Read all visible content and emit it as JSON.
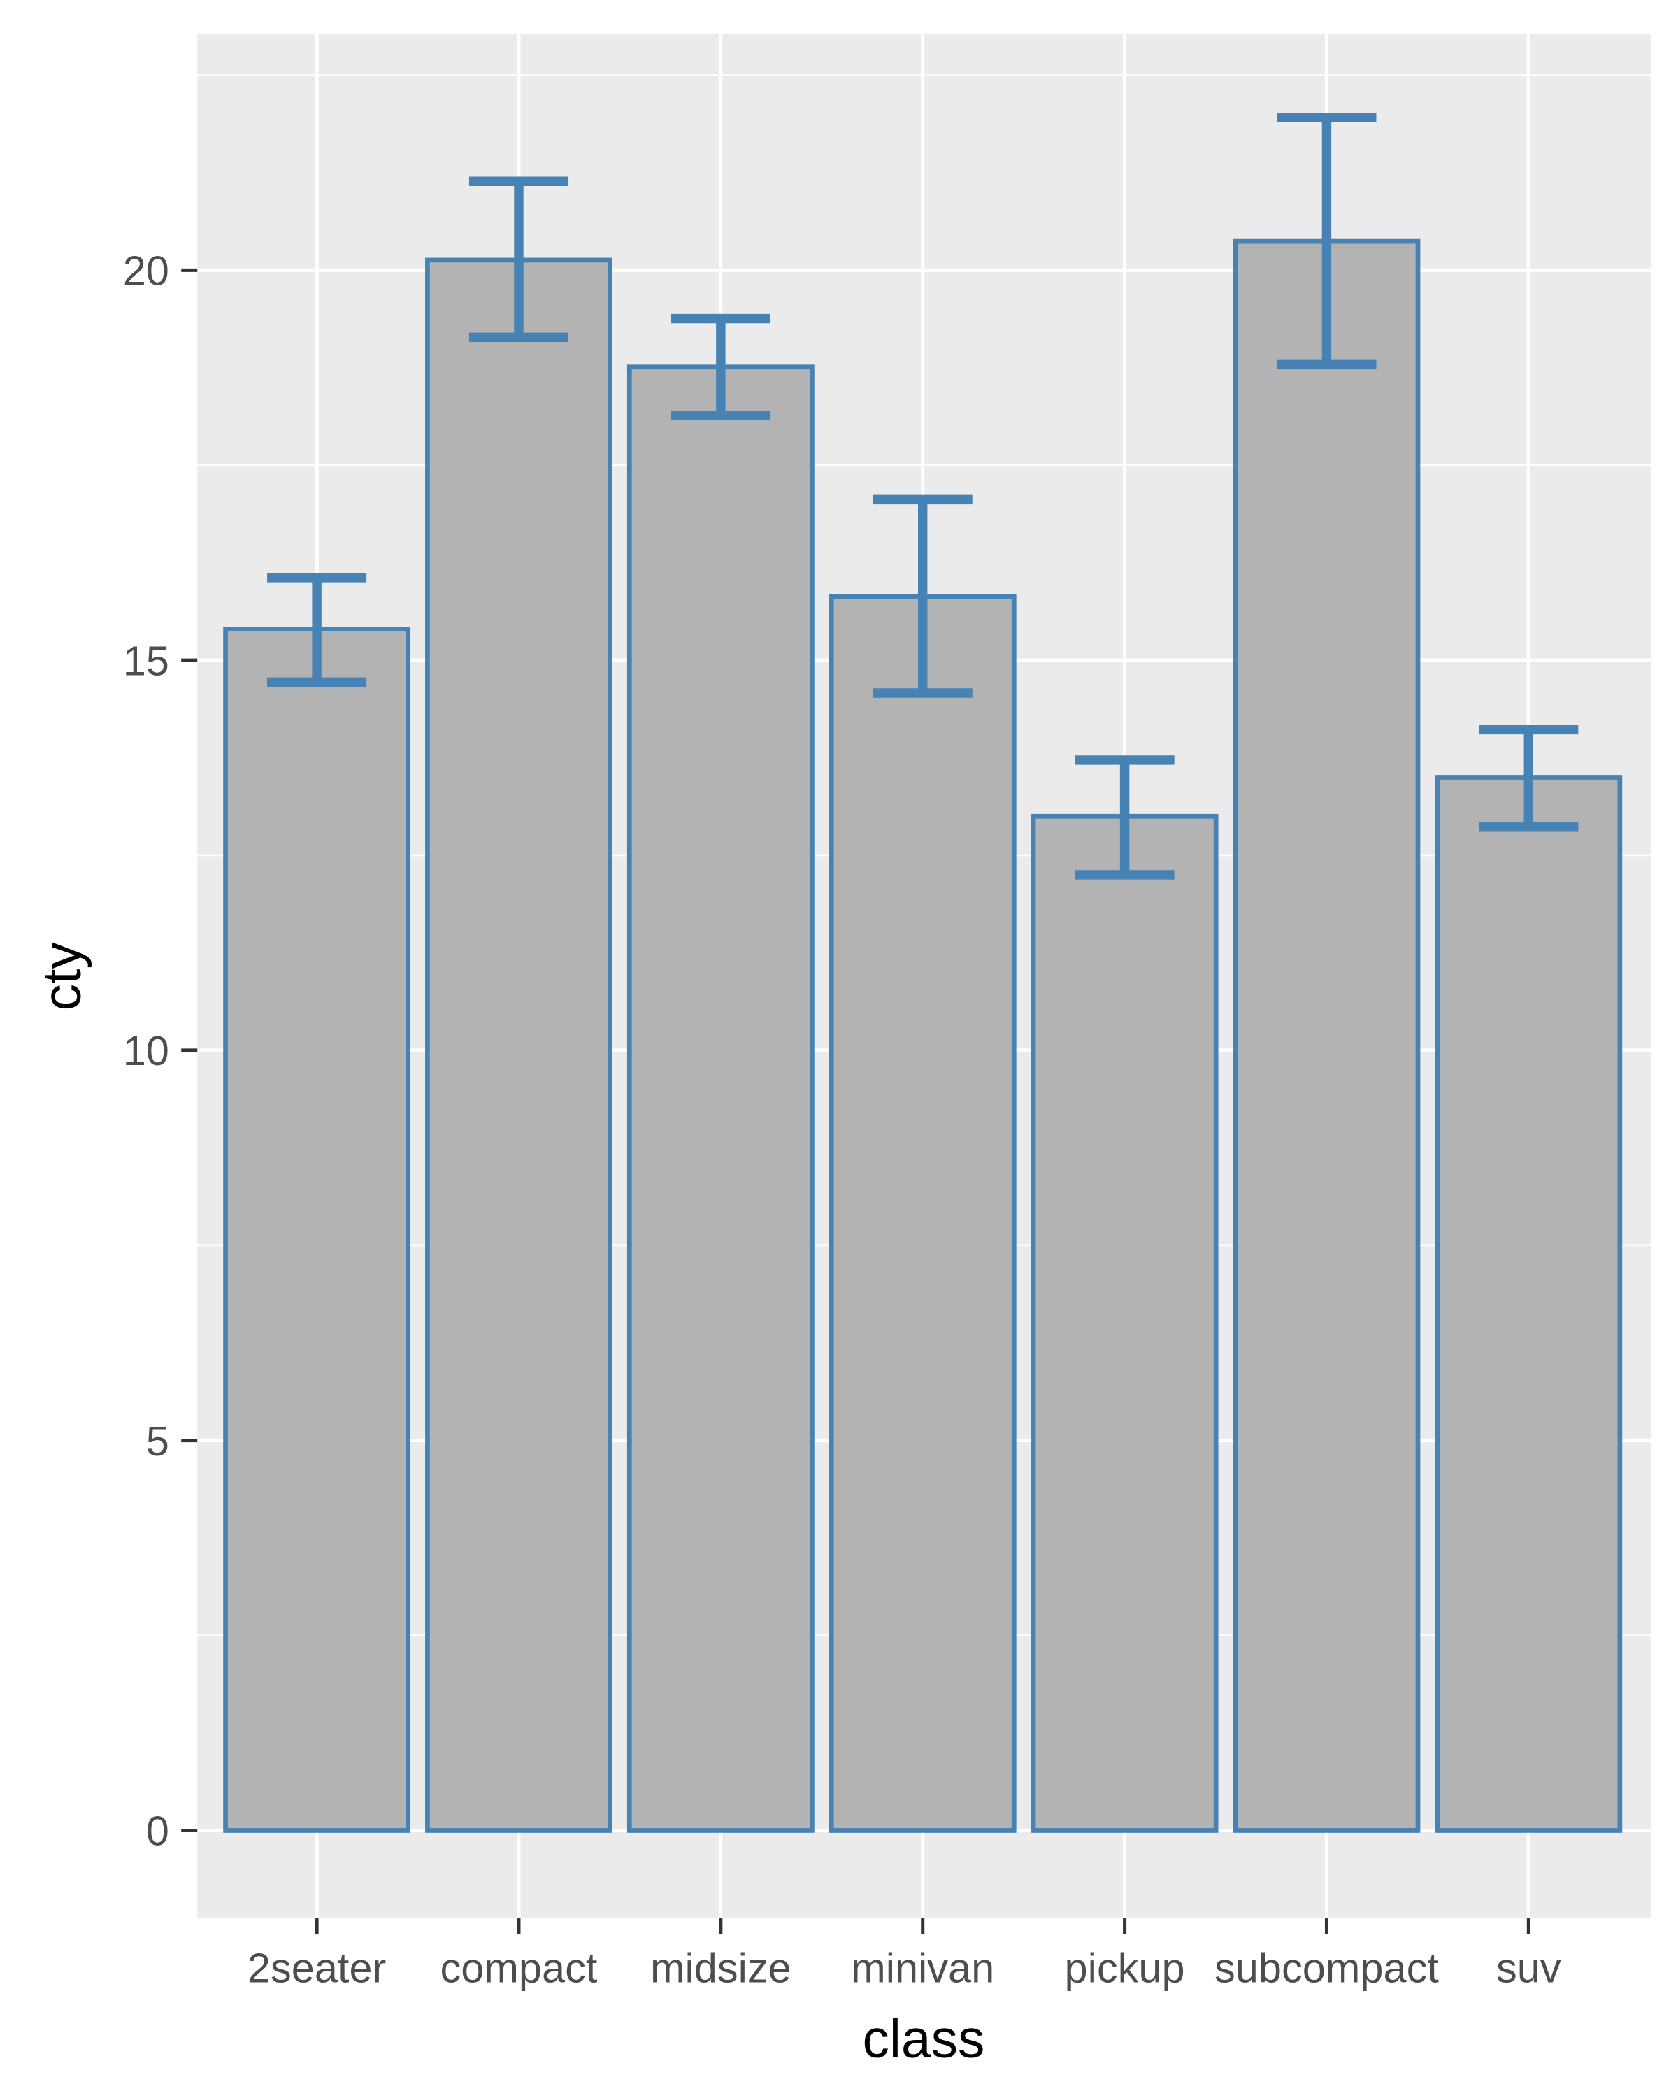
{
  "chart_data": {
    "type": "bar",
    "title": "",
    "xlabel": "class",
    "ylabel": "cty",
    "categories": [
      "2seater",
      "compact",
      "midsize",
      "minivan",
      "pickup",
      "subcompact",
      "suv"
    ],
    "values": [
      15.4,
      20.13,
      18.76,
      15.82,
      13.0,
      20.37,
      13.5
    ],
    "error_low": [
      14.72,
      19.14,
      18.14,
      14.58,
      12.25,
      18.79,
      12.87
    ],
    "error_high": [
      16.06,
      21.14,
      19.38,
      17.06,
      13.72,
      21.96,
      14.11
    ],
    "ylim": [
      -1.1,
      22.9
    ],
    "yticks": [
      0,
      5,
      10,
      15,
      20
    ],
    "ytick_labels": [
      "0",
      "5",
      "10",
      "15",
      "20"
    ],
    "grid": true,
    "colors": {
      "bar_fill": "#b3b3b3",
      "bar_outline": "#4682b4",
      "panel": "#ebebeb",
      "grid": "#ffffff"
    }
  }
}
